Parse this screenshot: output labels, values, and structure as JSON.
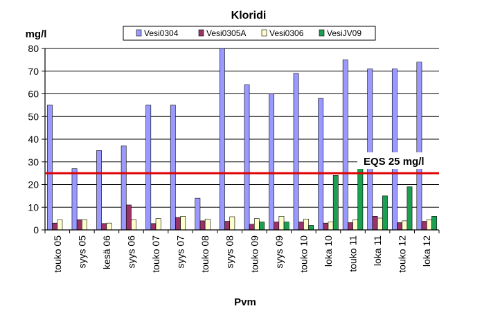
{
  "chart_data": {
    "type": "bar",
    "title": "Kloridi",
    "ylabel": "mg/l",
    "xlabel": "Pvm",
    "ylim": [
      0,
      80
    ],
    "yticks": [
      0,
      10,
      20,
      30,
      40,
      50,
      60,
      70,
      80
    ],
    "grid": true,
    "legend_position": "top",
    "categories": [
      "touko 05",
      "syys 05",
      "kesä 06",
      "syys 06",
      "touko 07",
      "syys 07",
      "touko 08",
      "syys 08",
      "touko 09",
      "syys 09",
      "touko 10",
      "loka 10",
      "touko 11",
      "loka 11",
      "touko 12",
      "loka 12"
    ],
    "series": [
      {
        "name": "Vesi0304",
        "color": "#9999ff",
        "values": [
          55,
          27,
          35,
          37,
          55,
          55,
          14,
          81,
          64,
          60,
          69,
          58,
          75,
          71,
          71,
          74
        ]
      },
      {
        "name": "Vesi0305A",
        "color": "#993366",
        "values": [
          3,
          4.5,
          2.8,
          11,
          2.8,
          5.5,
          4,
          3.8,
          2.5,
          3.5,
          3.5,
          3,
          3.2,
          6,
          3.2,
          3.8
        ]
      },
      {
        "name": "Vesi0306",
        "color": "#ffffcc",
        "values": [
          4.5,
          4.5,
          3,
          4.5,
          5,
          6,
          4.8,
          5.8,
          5,
          6,
          4.8,
          3.5,
          4.5,
          5.2,
          4,
          4.5
        ]
      },
      {
        "name": "VesiJV09",
        "color": "#1aa050",
        "values": [
          null,
          null,
          null,
          null,
          null,
          null,
          null,
          null,
          3.5,
          3.5,
          2,
          24,
          32,
          15,
          19,
          6
        ]
      }
    ],
    "reference_line": {
      "value": 25,
      "label": "EQS 25 mg/l",
      "color": "#dd0000"
    }
  }
}
